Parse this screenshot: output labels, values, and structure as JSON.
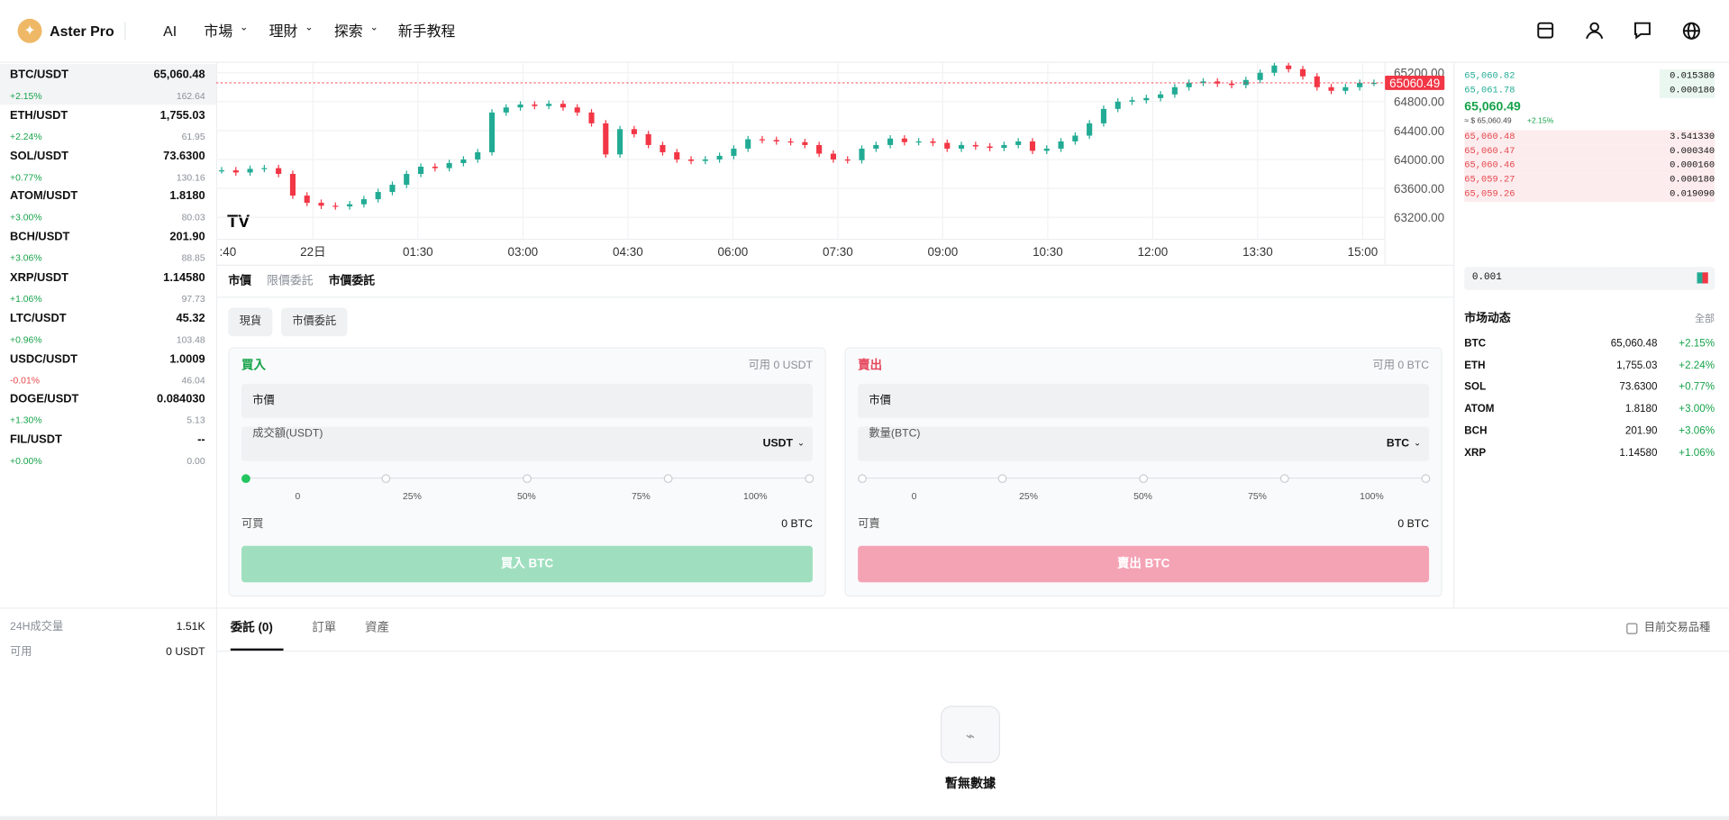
{
  "nav": {
    "brand": "Aster Pro",
    "items": [
      "AI",
      "市場",
      "理財",
      "探索",
      "新手教程"
    ]
  },
  "markets": [
    {
      "pair": "BTC/USDT",
      "price": "65,060.48",
      "change": "+2.15%",
      "volume": "162.64"
    },
    {
      "pair": "ETH/USDT",
      "price": "1,755.03",
      "change": "+2.24%",
      "volume": "61.95"
    },
    {
      "pair": "SOL/USDT",
      "price": "73.6300",
      "change": "+0.77%",
      "volume": "130.16"
    },
    {
      "pair": "ATOM/USDT",
      "price": "1.8180",
      "change": "+3.00%",
      "volume": "80.03"
    },
    {
      "pair": "BCH/USDT",
      "price": "201.90",
      "change": "+3.06%",
      "volume": "88.85"
    },
    {
      "pair": "XRP/USDT",
      "price": "1.14580",
      "change": "+1.06%",
      "volume": "97.73"
    },
    {
      "pair": "LTC/USDT",
      "price": "45.32",
      "change": "+0.96%",
      "volume": "103.48"
    },
    {
      "pair": "USDC/USDT",
      "price": "1.0009",
      "change": "-0.01%",
      "volume": "46.04"
    },
    {
      "pair": "DOGE/USDT",
      "price": "0.084030",
      "change": "+1.30%",
      "volume": "5.13"
    },
    {
      "pair": "FIL/USDT",
      "price": "--",
      "change": "+0.00%",
      "volume": "0.00"
    }
  ],
  "stats": [
    {
      "label": "24H成交量",
      "value": "1.51K"
    },
    {
      "label": "可用",
      "value": "0 USDT"
    }
  ],
  "price_chart": {
    "type": "candlestick",
    "ylim": [
      62895,
      65337
    ],
    "yticks": [
      {
        "value": 65200,
        "label": "65200.00"
      },
      {
        "value": 64800,
        "label": "64800.00"
      },
      {
        "value": 64400,
        "label": "64400.00"
      },
      {
        "value": 64000,
        "label": "64000.00"
      },
      {
        "value": 63600,
        "label": "63600.00"
      },
      {
        "value": 63200,
        "label": "63200.00"
      }
    ],
    "xticks": [
      ":40",
      "22日",
      "01:30",
      "03:00",
      "04:30",
      "06:00",
      "07:30",
      "09:00",
      "10:30",
      "12:00",
      "13:30",
      "15:00"
    ],
    "last_price": 65060.49,
    "up_color": "#22ab94",
    "down_color": "#f23645",
    "closes": [
      63850,
      63820,
      63870,
      63880,
      63800,
      63500,
      63400,
      63360,
      63350,
      63380,
      63450,
      63550,
      63650,
      63800,
      63900,
      63880,
      63950,
      64000,
      64100,
      64650,
      64720,
      64760,
      64740,
      64770,
      64720,
      64650,
      64500,
      64070,
      64420,
      64350,
      64200,
      64100,
      64000,
      63980,
      64000,
      64050,
      64150,
      64280,
      64270,
      64250,
      64240,
      64200,
      64080,
      64000,
      63990,
      64150,
      64200,
      64290,
      64240,
      64250,
      64230,
      64150,
      64200,
      64180,
      64160,
      64200,
      64250,
      64120,
      64150,
      64250,
      64330,
      64500,
      64700,
      64800,
      64820,
      64850,
      64900,
      65000,
      65060,
      65080,
      65050,
      65030,
      65100,
      65200,
      65300,
      65250,
      65150,
      65000,
      64950,
      65000,
      65060,
      65060
    ]
  },
  "order_tabs": [
    "市價",
    "限價委託",
    "市價委託"
  ],
  "sub_tabs": [
    "現貨",
    "市價委託"
  ],
  "buy": {
    "title": "買入",
    "available": "可用 0 USDT",
    "type": "市價",
    "amount_label": "成交額(USDT)",
    "unit": "USDT",
    "slider": [
      "0",
      "25%",
      "50%",
      "75%",
      "100%"
    ],
    "can_label": "可買",
    "can_value": "0 BTC",
    "button": "買入 BTC"
  },
  "sell": {
    "title": "賣出",
    "available": "可用 0 BTC",
    "type": "市價",
    "amount_label": "數量(BTC)",
    "unit": "BTC",
    "slider": [
      "0",
      "25%",
      "50%",
      "75%",
      "100%"
    ],
    "can_label": "可賣",
    "can_value": "0 BTC",
    "button": "賣出 BTC"
  },
  "order_book": {
    "upper": [
      {
        "price": "65,060.82",
        "qty": "0.015380"
      },
      {
        "price": "65,061.78",
        "qty": "0.000180"
      }
    ],
    "mid_price": "65,060.49",
    "mid_usd": "≈ $ 65,060.49",
    "mid_change": "+2.15%",
    "lower": [
      {
        "price": "65,060.48",
        "qty": "3.541330"
      },
      {
        "price": "65,060.47",
        "qty": "0.000340"
      },
      {
        "price": "65,060.46",
        "qty": "0.000160"
      },
      {
        "price": "65,059.27",
        "qty": "0.000180"
      },
      {
        "price": "65,059.26",
        "qty": "0.019090"
      }
    ],
    "step": "0.001"
  },
  "market_feed": {
    "title": "市场动态",
    "all": "全部",
    "rows": [
      {
        "name": "BTC",
        "price": "65,060.48",
        "change": "+2.15%"
      },
      {
        "name": "ETH",
        "price": "1,755.03",
        "change": "+2.24%"
      },
      {
        "name": "SOL",
        "price": "73.6300",
        "change": "+0.77%"
      },
      {
        "name": "ATOM",
        "price": "1.8180",
        "change": "+3.00%"
      },
      {
        "name": "BCH",
        "price": "201.90",
        "change": "+3.06%"
      },
      {
        "name": "XRP",
        "price": "1.14580",
        "change": "+1.06%"
      }
    ]
  },
  "bottom": {
    "tabs": [
      "委託 (0)",
      "訂單",
      "資產"
    ],
    "filter": "目前交易品種",
    "empty": "暫無數據"
  }
}
